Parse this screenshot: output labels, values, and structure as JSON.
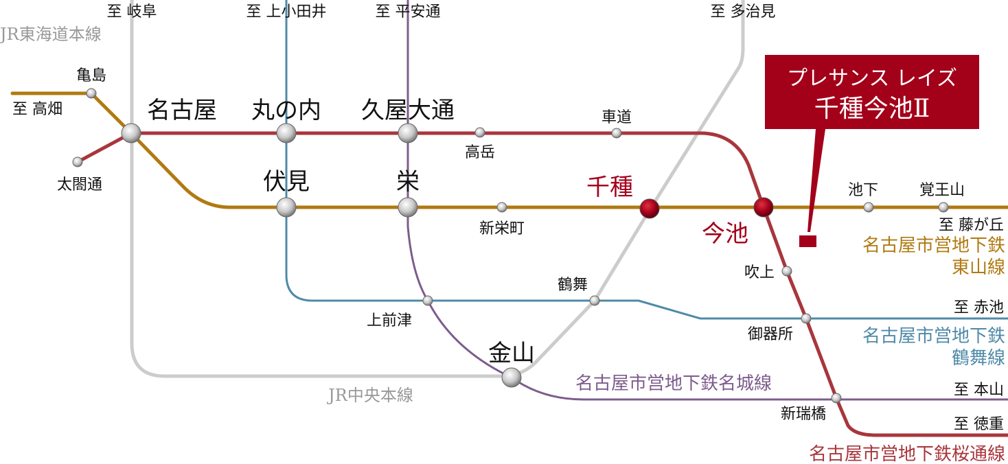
{
  "colors": {
    "higashiyama": "#b07a12",
    "sakuradori": "#a8363c",
    "meijo": "#7d5c8c",
    "tsurumai": "#4f8aa8",
    "jr": "#cccccc",
    "highlight": "#a3001a"
  },
  "callout": {
    "line1": "プレサンス レイズ",
    "line2": "千種今池Ⅱ"
  },
  "directions": {
    "gifu": "至 岐阜",
    "kamiotai": "至 上小田井",
    "heiandori": "至 平安通",
    "tajimi": "至 多治見",
    "takabata": "至 高畑",
    "fujigaoka": "至 藤が丘",
    "akaike": "至 赤池",
    "motoyama": "至 本山",
    "tokushige": "至 徳重"
  },
  "lines": {
    "jr_tokaido": "JR東海道本線",
    "jr_chuo": "JR中央本線",
    "higashiyama": [
      "名古屋市営地下鉄",
      "東山線"
    ],
    "tsurumai": [
      "名古屋市営地下鉄",
      "鶴舞線"
    ],
    "meijo": "名古屋市営地下鉄名城線",
    "sakuradori": "名古屋市営地下鉄桜通線"
  },
  "stations": {
    "kameshima": "亀島",
    "taikodori": "太閤通",
    "nagoya": "名古屋",
    "marunouchi": "丸の内",
    "hisaya_odori": "久屋大通",
    "takaoka": "高岳",
    "kurumamichi": "車道",
    "fushimi": "伏見",
    "sakae": "栄",
    "shinsakaemachi": "新栄町",
    "chikusa": "千種",
    "imaike": "今池",
    "ikeshita": "池下",
    "kakuozan": "覚王山",
    "fukiage": "吹上",
    "tsurumai": "鶴舞",
    "kamimaezu": "上前津",
    "gokiso": "御器所",
    "kanayama": "金山",
    "aratamabashi": "新瑞橋"
  }
}
